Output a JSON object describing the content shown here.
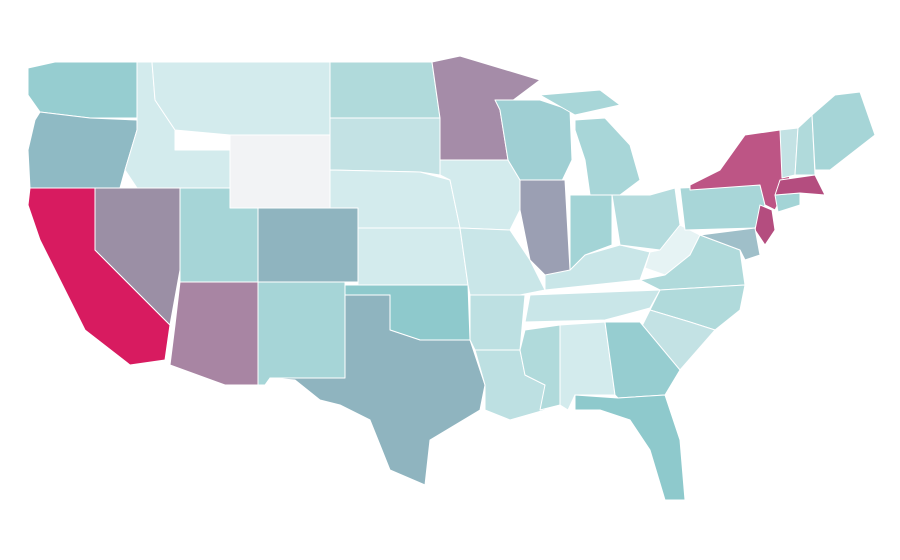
{
  "map": {
    "regions": [
      {
        "color": "#96cdd0"
      },
      {
        "color": "#8fbac4"
      },
      {
        "color": "#d81b60"
      },
      {
        "color": "#9b8fa5"
      },
      {
        "color": "#d3ebed"
      },
      {
        "color": "#d3ebed"
      },
      {
        "color": "#f2f3f5"
      },
      {
        "color": "#a6d5d7"
      },
      {
        "color": "#8fb4bf"
      },
      {
        "color": "#a885a3"
      },
      {
        "color": "#a6d5d7"
      },
      {
        "color": "#b0dadb"
      },
      {
        "color": "#c3e2e4"
      },
      {
        "color": "#d3ebed"
      },
      {
        "color": "#d3ebed"
      },
      {
        "color": "#8ec9cc"
      },
      {
        "color": "#8fb4bf"
      },
      {
        "color": "#a58ca8"
      },
      {
        "color": "#d3ebed"
      },
      {
        "color": "#c9e6e8"
      },
      {
        "color": "#bde0e2"
      },
      {
        "color": "#bde0e2"
      },
      {
        "color": "#9fcfd3"
      },
      {
        "color": "#9b9fb3"
      },
      {
        "color": "#b0dadb"
      },
      {
        "color": "#d3ebed"
      },
      {
        "color": "#c9e6e8"
      },
      {
        "color": "#c9e6e8"
      },
      {
        "color": "#a3d4d6"
      },
      {
        "color": "#a8d6d8"
      },
      {
        "color": "#b5dcde"
      },
      {
        "color": "#e6f3f4"
      },
      {
        "color": "#b0dadb"
      },
      {
        "color": "#b0dadb"
      },
      {
        "color": "#c3e2e4"
      },
      {
        "color": "#96cdd0"
      },
      {
        "color": "#8ec9cc"
      },
      {
        "color": "#a8d6d8"
      },
      {
        "color": "#bd5585"
      },
      {
        "color": "#b44d7f"
      },
      {
        "color": "#9fbfc9"
      },
      {
        "color": "#a3d4d6"
      },
      {
        "color": "#b44d7f"
      },
      {
        "color": "#c3e2e4"
      },
      {
        "color": "#b0dadb"
      },
      {
        "color": "#a6d5d7"
      }
    ]
  }
}
